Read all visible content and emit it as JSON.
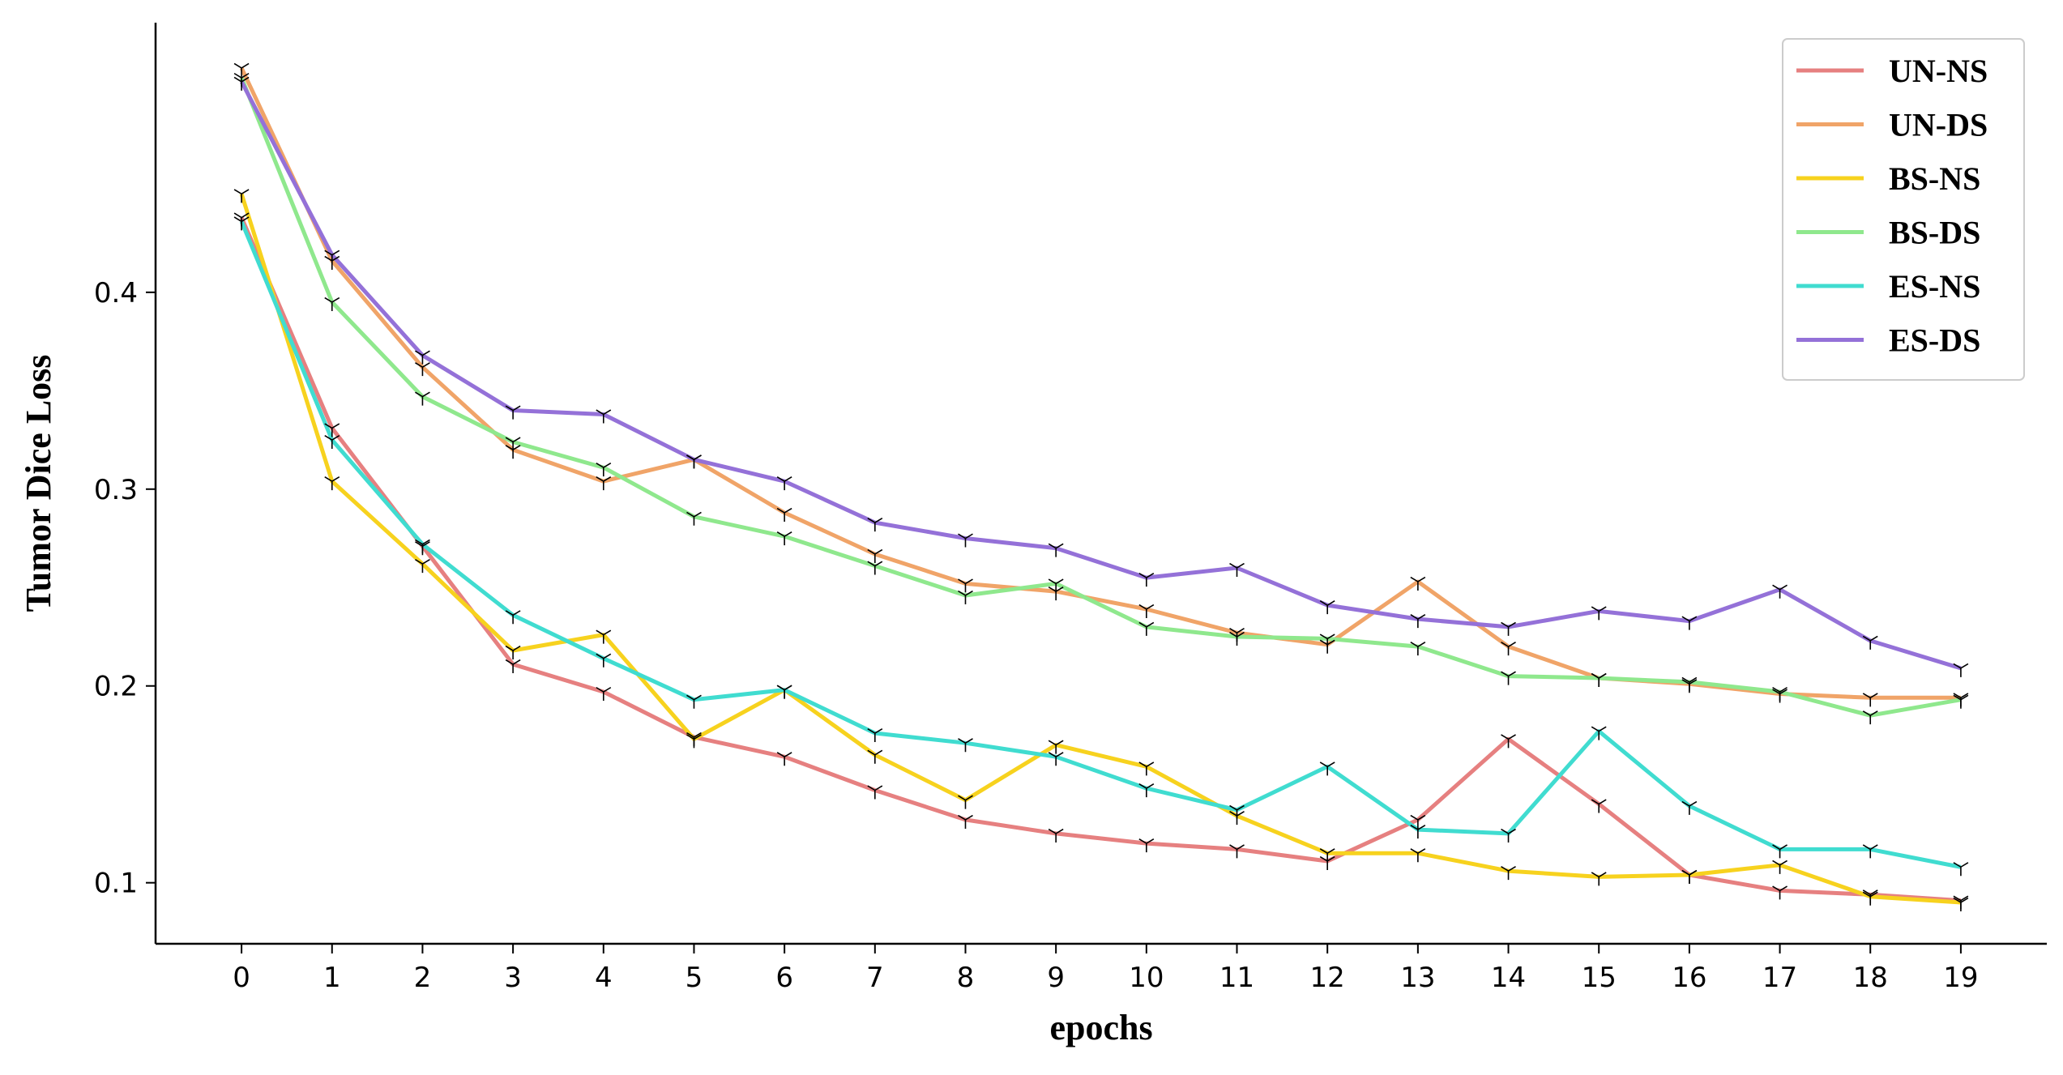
{
  "chart_data": {
    "type": "line",
    "xlabel": "epochs",
    "ylabel": "Tumor Dice Loss",
    "x": [
      0,
      1,
      2,
      3,
      4,
      5,
      6,
      7,
      8,
      9,
      10,
      11,
      12,
      13,
      14,
      15,
      16,
      17,
      18,
      19
    ],
    "xlim": [
      -0.95,
      19.95
    ],
    "ylim": [
      0.069,
      0.537
    ],
    "yticks": [
      0.1,
      0.2,
      0.3,
      0.4
    ],
    "ytick_labels": [
      "0.1",
      "0.2",
      "0.3",
      "0.4"
    ],
    "grid": false,
    "legend_position": "top-right",
    "marker": "tri_down",
    "series": [
      {
        "name": "UN-NS",
        "color": "#e68080",
        "values": [
          0.438,
          0.331,
          0.271,
          0.211,
          0.197,
          0.174,
          0.164,
          0.147,
          0.132,
          0.125,
          0.12,
          0.117,
          0.111,
          0.132,
          0.173,
          0.14,
          0.104,
          0.096,
          0.094,
          0.091
        ]
      },
      {
        "name": "UN-DS",
        "color": "#f0a468",
        "values": [
          0.514,
          0.416,
          0.362,
          0.32,
          0.304,
          0.315,
          0.288,
          0.267,
          0.252,
          0.248,
          0.239,
          0.227,
          0.221,
          0.253,
          0.22,
          0.204,
          0.201,
          0.196,
          0.194,
          0.194
        ]
      },
      {
        "name": "BS-NS",
        "color": "#f7d21e",
        "values": [
          0.45,
          0.304,
          0.262,
          0.218,
          0.226,
          0.173,
          0.198,
          0.165,
          0.142,
          0.17,
          0.159,
          0.134,
          0.115,
          0.115,
          0.106,
          0.103,
          0.104,
          0.109,
          0.093,
          0.09
        ]
      },
      {
        "name": "BS-DS",
        "color": "#8fe88d",
        "values": [
          0.509,
          0.395,
          0.347,
          0.324,
          0.311,
          0.286,
          0.276,
          0.261,
          0.246,
          0.252,
          0.23,
          0.225,
          0.224,
          0.22,
          0.205,
          0.204,
          0.202,
          0.197,
          0.185,
          0.193
        ]
      },
      {
        "name": "ES-NS",
        "color": "#40dcd0",
        "values": [
          0.436,
          0.325,
          0.272,
          0.236,
          0.214,
          0.193,
          0.198,
          0.176,
          0.171,
          0.164,
          0.148,
          0.137,
          0.159,
          0.127,
          0.125,
          0.177,
          0.139,
          0.117,
          0.117,
          0.108
        ]
      },
      {
        "name": "ES-DS",
        "color": "#9471d8",
        "values": [
          0.507,
          0.419,
          0.368,
          0.34,
          0.338,
          0.315,
          0.304,
          0.283,
          0.275,
          0.27,
          0.255,
          0.26,
          0.241,
          0.234,
          0.23,
          0.238,
          0.233,
          0.249,
          0.223,
          0.209
        ]
      }
    ]
  }
}
